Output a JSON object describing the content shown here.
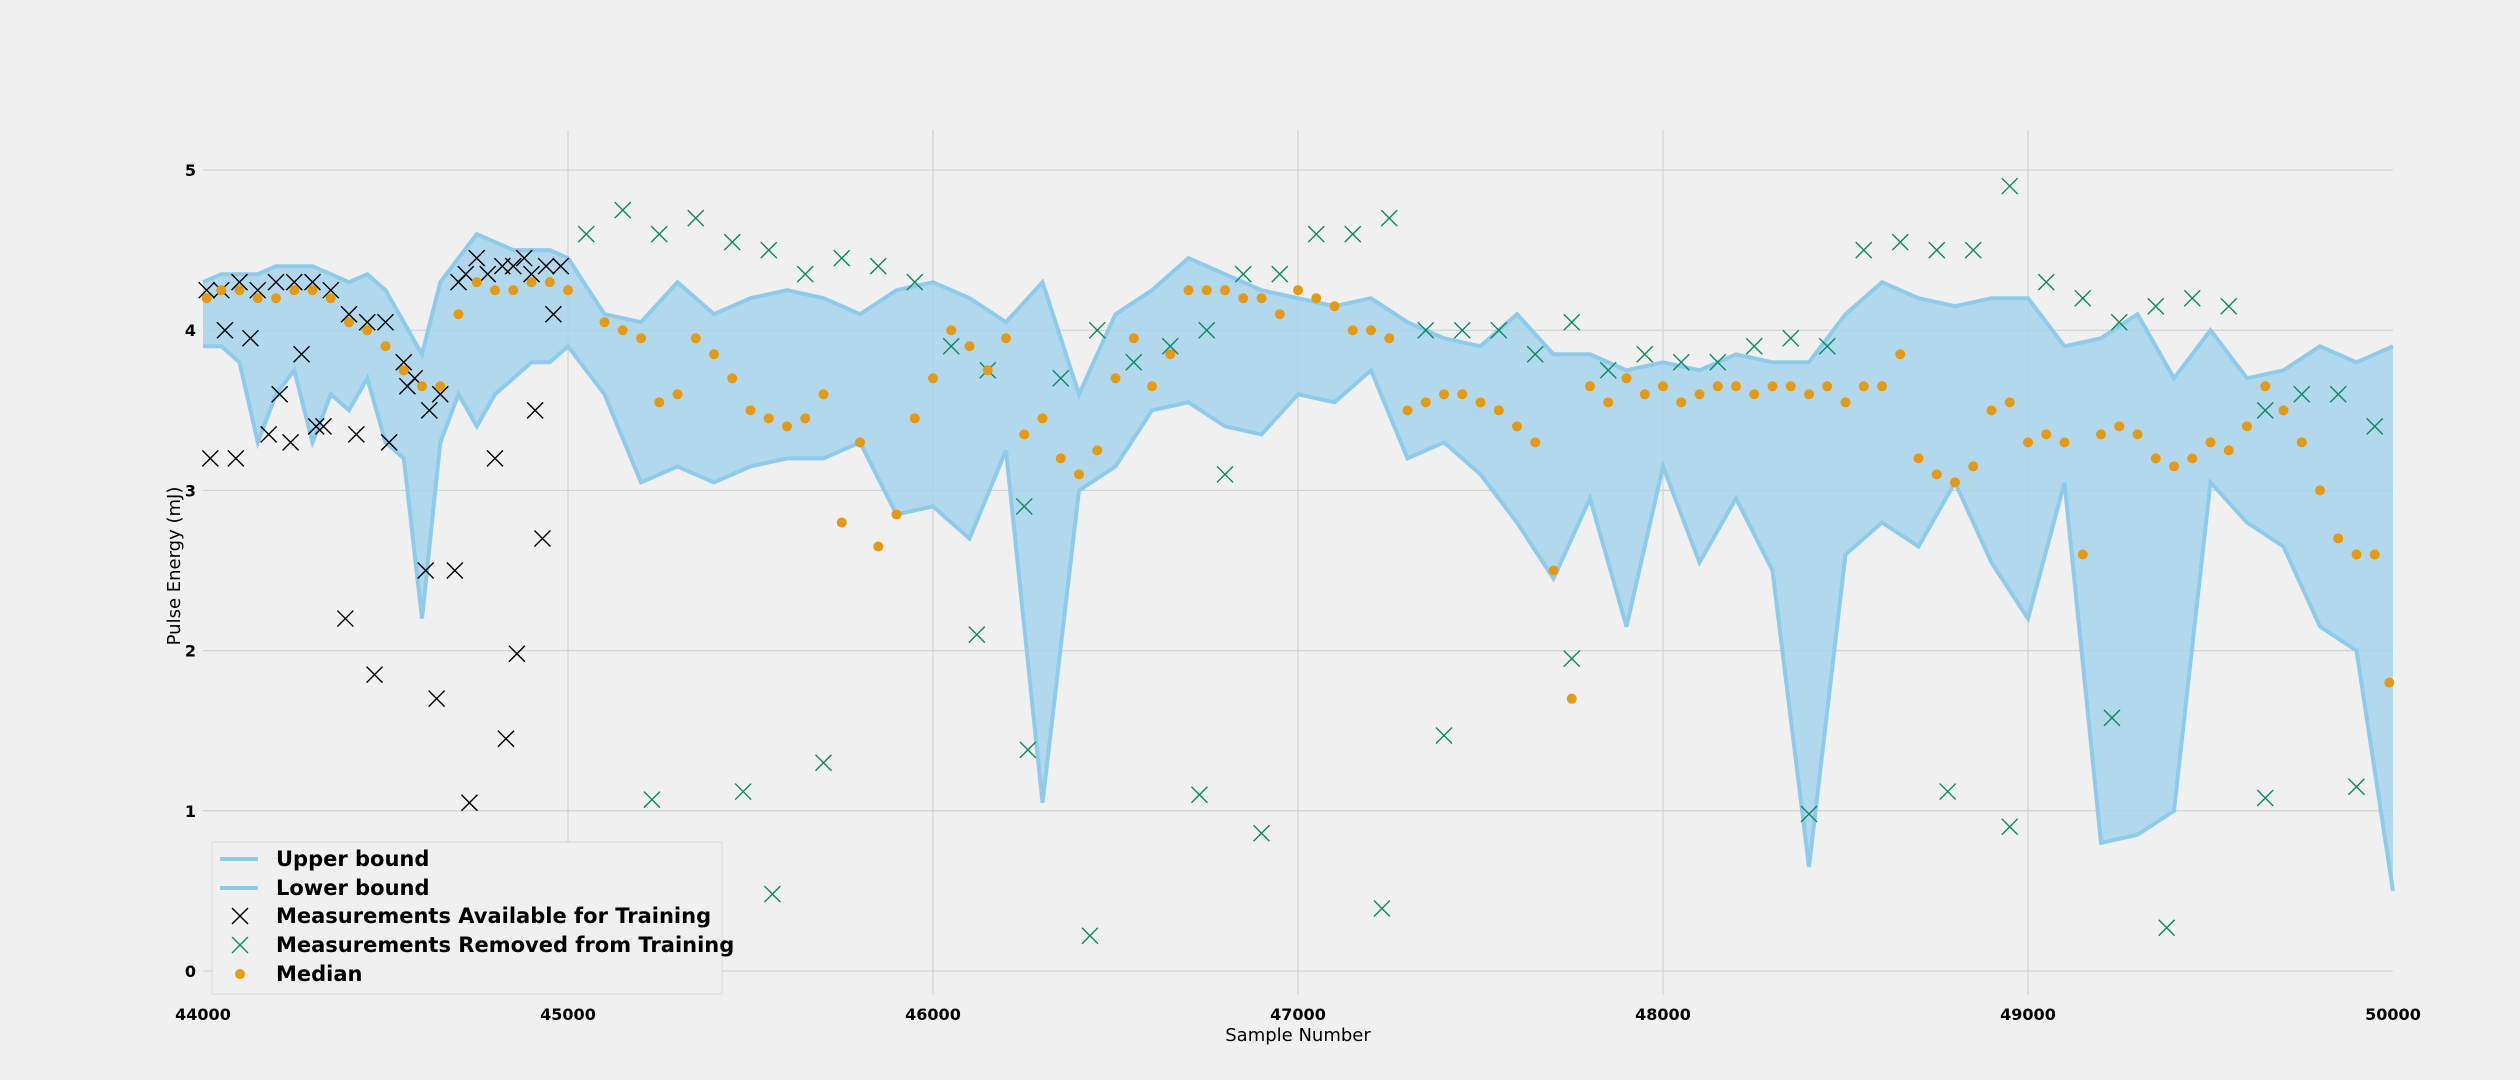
{
  "chart_data": {
    "type": "line",
    "title": "",
    "xlabel": "Sample Number",
    "ylabel": "Pulse Energy (mJ)",
    "xlim": [
      44000,
      50000
    ],
    "ylim": [
      -0.15,
      5.25
    ],
    "x_ticks": [
      "44000",
      "45000",
      "46000",
      "47000",
      "48000",
      "49000",
      "50000"
    ],
    "y_ticks": [
      "0",
      "1",
      "2",
      "3",
      "4",
      "5"
    ],
    "grid": true,
    "legend_position": "lower-left",
    "colors": {
      "upper_bound": "#8ecbeb",
      "lower_bound": "#8ecbeb",
      "band_fill": "#a6d3ec",
      "available": "#000000",
      "removed": "#0a8a5e",
      "median": "#e69a0f",
      "background": "#f0f0f0",
      "grid": "#d2d2d2"
    },
    "series": [
      {
        "name": "Upper bound",
        "kind": "line",
        "x": [
          44000,
          44050,
          44100,
          44150,
          44200,
          44250,
          44300,
          44350,
          44400,
          44450,
          44500,
          44550,
          44600,
          44650,
          44700,
          44750,
          44800,
          44850,
          44900,
          44950,
          45000,
          45100,
          45200,
          45300,
          45400,
          45500,
          45600,
          45700,
          45800,
          45900,
          46000,
          46100,
          46200,
          46300,
          46400,
          46500,
          46600,
          46700,
          46800,
          46900,
          47000,
          47100,
          47200,
          47300,
          47400,
          47500,
          47600,
          47700,
          47800,
          47900,
          48000,
          48100,
          48200,
          48300,
          48400,
          48500,
          48600,
          48700,
          48800,
          48900,
          49000,
          49100,
          49200,
          49300,
          49400,
          49500,
          49600,
          49700,
          49800,
          49900,
          50000
        ],
        "values": [
          4.3,
          4.35,
          4.35,
          4.35,
          4.4,
          4.4,
          4.4,
          4.35,
          4.3,
          4.35,
          4.25,
          4.05,
          3.85,
          4.3,
          4.45,
          4.6,
          4.55,
          4.5,
          4.5,
          4.5,
          4.45,
          4.1,
          4.05,
          4.3,
          4.1,
          4.2,
          4.25,
          4.2,
          4.1,
          4.25,
          4.3,
          4.2,
          4.05,
          4.3,
          3.6,
          4.1,
          4.25,
          4.45,
          4.35,
          4.25,
          4.2,
          4.15,
          4.2,
          4.05,
          3.95,
          3.9,
          4.1,
          3.85,
          3.85,
          3.75,
          3.8,
          3.75,
          3.85,
          3.8,
          3.8,
          4.1,
          4.3,
          4.2,
          4.15,
          4.2,
          4.2,
          3.9,
          3.95,
          4.1,
          3.7,
          4.0,
          3.7,
          3.75,
          3.9,
          3.8,
          3.9
        ]
      },
      {
        "name": "Lower bound",
        "kind": "line",
        "x": [
          44000,
          44050,
          44100,
          44150,
          44200,
          44250,
          44300,
          44350,
          44400,
          44450,
          44500,
          44550,
          44600,
          44650,
          44700,
          44750,
          44800,
          44850,
          44900,
          44950,
          45000,
          45100,
          45200,
          45300,
          45400,
          45500,
          45600,
          45700,
          45800,
          45900,
          46000,
          46100,
          46200,
          46300,
          46400,
          46500,
          46600,
          46700,
          46800,
          46900,
          47000,
          47100,
          47200,
          47300,
          47400,
          47500,
          47600,
          47700,
          47800,
          47900,
          48000,
          48100,
          48200,
          48300,
          48400,
          48500,
          48600,
          48700,
          48800,
          48900,
          49000,
          49100,
          49200,
          49300,
          49400,
          49500,
          49600,
          49700,
          49800,
          49900,
          50000
        ],
        "values": [
          3.9,
          3.9,
          3.8,
          3.3,
          3.6,
          3.75,
          3.3,
          3.6,
          3.5,
          3.7,
          3.3,
          3.2,
          2.2,
          3.3,
          3.6,
          3.4,
          3.6,
          3.7,
          3.8,
          3.8,
          3.9,
          3.6,
          3.05,
          3.15,
          3.05,
          3.15,
          3.2,
          3.2,
          3.3,
          2.85,
          2.9,
          2.7,
          3.25,
          1.05,
          3.0,
          3.15,
          3.5,
          3.55,
          3.4,
          3.35,
          3.6,
          3.55,
          3.75,
          3.2,
          3.3,
          3.1,
          2.8,
          2.45,
          2.95,
          2.15,
          3.15,
          2.55,
          2.95,
          2.5,
          0.65,
          2.6,
          2.8,
          2.65,
          3.05,
          2.55,
          2.2,
          3.05,
          0.8,
          0.85,
          1.0,
          3.05,
          2.8,
          2.65,
          2.15,
          2.0,
          0.5
        ]
      },
      {
        "name": "Measurements Available for Training",
        "kind": "scatter",
        "marker": "x",
        "x": [
          44010,
          44050,
          44100,
          44150,
          44200,
          44250,
          44300,
          44350,
          44400,
          44450,
          44500,
          44550,
          44580,
          44620,
          44650,
          44700,
          44720,
          44750,
          44780,
          44820,
          44850,
          44880,
          44900,
          44940,
          44980,
          44020,
          44090,
          44180,
          44240,
          44310,
          44390,
          44470,
          44610,
          44690,
          44830,
          44930,
          44060,
          44130,
          44210,
          44270,
          44330,
          44420,
          44510,
          44560,
          44640,
          44730,
          44800,
          44860,
          44910,
          44960
        ],
        "values": [
          4.25,
          4.25,
          4.3,
          4.25,
          4.3,
          4.3,
          4.3,
          4.25,
          4.1,
          4.05,
          4.05,
          3.8,
          3.7,
          3.5,
          3.6,
          4.3,
          4.35,
          4.45,
          4.35,
          4.4,
          4.4,
          4.45,
          4.35,
          4.4,
          4.4,
          3.2,
          3.2,
          3.35,
          3.3,
          3.4,
          2.2,
          1.85,
          2.5,
          2.5,
          1.45,
          2.7,
          4.0,
          3.95,
          3.6,
          3.85,
          3.4,
          3.35,
          3.3,
          3.65,
          1.7,
          1.05,
          3.2,
          1.98,
          3.5,
          4.1
        ]
      },
      {
        "name": "Measurements Removed from Training",
        "kind": "scatter",
        "marker": "x",
        "x": [
          45050,
          45150,
          45250,
          45350,
          45450,
          45550,
          45650,
          45750,
          45850,
          45950,
          46050,
          46150,
          46250,
          46350,
          46450,
          46550,
          46650,
          46750,
          46850,
          46950,
          47050,
          47150,
          47250,
          47350,
          47450,
          47550,
          47650,
          47750,
          47850,
          47950,
          48050,
          48150,
          48250,
          48350,
          48450,
          48550,
          48650,
          48750,
          48850,
          48950,
          49050,
          49150,
          49250,
          49350,
          49450,
          49550,
          49650,
          49750,
          49850,
          49950,
          45230,
          45480,
          45560,
          45700,
          46120,
          46260,
          46430,
          46730,
          46800,
          46900,
          47230,
          47400,
          47750,
          48400,
          48780,
          48950,
          49230,
          49380,
          49650,
          49900
        ],
        "values": [
          4.6,
          4.75,
          4.6,
          4.7,
          4.55,
          4.5,
          4.35,
          4.45,
          4.4,
          4.3,
          3.9,
          3.75,
          2.9,
          3.7,
          4.0,
          3.8,
          3.9,
          4.0,
          4.35,
          4.35,
          4.6,
          4.6,
          4.7,
          4.0,
          4.0,
          4.0,
          3.85,
          4.05,
          3.75,
          3.85,
          3.8,
          3.8,
          3.9,
          3.95,
          3.9,
          4.5,
          4.55,
          4.5,
          4.5,
          4.9,
          4.3,
          4.2,
          4.05,
          4.15,
          4.2,
          4.15,
          3.5,
          3.6,
          3.6,
          3.4,
          1.07,
          1.12,
          0.48,
          1.3,
          2.1,
          1.38,
          0.22,
          1.1,
          3.1,
          0.86,
          0.39,
          1.47,
          1.95,
          0.98,
          1.12,
          0.9,
          1.58,
          0.27,
          1.08,
          1.15
        ]
      },
      {
        "name": "Median",
        "kind": "scatter",
        "marker": "o",
        "x": [
          44010,
          44050,
          44100,
          44150,
          44200,
          44250,
          44300,
          44350,
          44400,
          44450,
          44500,
          44550,
          44600,
          44650,
          44700,
          44750,
          44800,
          44850,
          44900,
          44950,
          45000,
          45100,
          45150,
          45200,
          45250,
          45300,
          45350,
          45400,
          45450,
          45500,
          45550,
          45600,
          45650,
          45700,
          45750,
          45800,
          45850,
          45900,
          45950,
          46000,
          46050,
          46100,
          46150,
          46200,
          46250,
          46300,
          46350,
          46400,
          46450,
          46500,
          46550,
          46600,
          46650,
          46700,
          46750,
          46800,
          46850,
          46900,
          46950,
          47000,
          47050,
          47100,
          47150,
          47200,
          47250,
          47300,
          47350,
          47400,
          47450,
          47500,
          47550,
          47600,
          47650,
          47700,
          47750,
          47800,
          47850,
          47900,
          47950,
          48000,
          48050,
          48100,
          48150,
          48200,
          48250,
          48300,
          48350,
          48400,
          48450,
          48500,
          48550,
          48600,
          48650,
          48700,
          48750,
          48800,
          48850,
          48900,
          48950,
          49000,
          49050,
          49100,
          49150,
          49200,
          49250,
          49300,
          49350,
          49400,
          49450,
          49500,
          49550,
          49600,
          49650,
          49700,
          49750,
          49800,
          49850,
          49900,
          49950,
          49990
        ],
        "values": [
          4.2,
          4.25,
          4.25,
          4.2,
          4.2,
          4.25,
          4.25,
          4.2,
          4.05,
          4.0,
          3.9,
          3.75,
          3.65,
          3.65,
          4.1,
          4.3,
          4.25,
          4.25,
          4.3,
          4.3,
          4.25,
          4.05,
          4.0,
          3.95,
          3.55,
          3.6,
          3.95,
          3.85,
          3.7,
          3.5,
          3.45,
          3.4,
          3.45,
          3.6,
          2.8,
          3.3,
          2.65,
          2.85,
          3.45,
          3.7,
          4.0,
          3.9,
          3.75,
          3.95,
          3.35,
          3.45,
          3.2,
          3.1,
          3.25,
          3.7,
          3.95,
          3.65,
          3.85,
          4.25,
          4.25,
          4.25,
          4.2,
          4.2,
          4.1,
          4.25,
          4.2,
          4.15,
          4.0,
          4.0,
          3.95,
          3.5,
          3.55,
          3.6,
          3.6,
          3.55,
          3.5,
          3.4,
          3.3,
          2.5,
          1.7,
          3.65,
          3.55,
          3.7,
          3.6,
          3.65,
          3.55,
          3.6,
          3.65,
          3.65,
          3.6,
          3.65,
          3.65,
          3.6,
          3.65,
          3.55,
          3.65,
          3.65,
          3.85,
          3.2,
          3.1,
          3.05,
          3.15,
          3.5,
          3.55,
          3.3,
          3.35,
          3.3,
          2.6,
          3.35,
          3.4,
          3.35,
          3.2,
          3.15,
          3.2,
          3.3,
          3.25,
          3.4,
          3.65,
          3.5,
          3.3,
          3.0,
          2.7,
          2.6,
          2.6,
          1.8
        ]
      }
    ]
  }
}
